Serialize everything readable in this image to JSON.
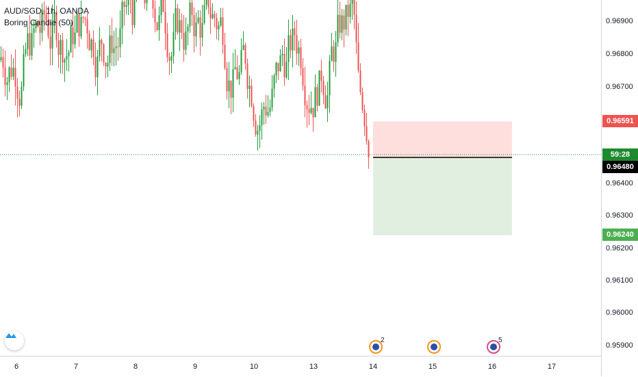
{
  "symbol": {
    "title": "AUD/SGD, 1h, OANDA",
    "indicator": "Boring Candle (50)"
  },
  "price_axis": {
    "ticks": [
      "0.96900",
      "0.96800",
      "0.96700",
      "0.96400",
      "0.96300",
      "0.96200",
      "0.96100",
      "0.96000",
      "0.95900"
    ],
    "stop_loss_label": "0.96591",
    "countdown_label": "59:28",
    "current_price_label": "0.96480",
    "take_profit_label": "0.96240"
  },
  "time_axis": {
    "ticks": [
      "6",
      "7",
      "8",
      "9",
      "10",
      "13",
      "14",
      "15",
      "16",
      "17"
    ]
  },
  "events": [
    {
      "label": "2"
    },
    {
      "label": ""
    },
    {
      "label": "5"
    }
  ],
  "colors": {
    "up": "#26a69a",
    "up_candle": "#1f9d3a",
    "down": "#ef5350",
    "stop_zone": "#ffdede",
    "target_zone": "#e1efe0",
    "price_line": "#1e8a2e",
    "badge_red": "#ef5350",
    "badge_green": "#4caf50",
    "badge_black": "#000000"
  },
  "position_tool": {
    "type": "short",
    "entry": 0.9648,
    "stop": 0.96591,
    "target": 0.9624
  }
}
